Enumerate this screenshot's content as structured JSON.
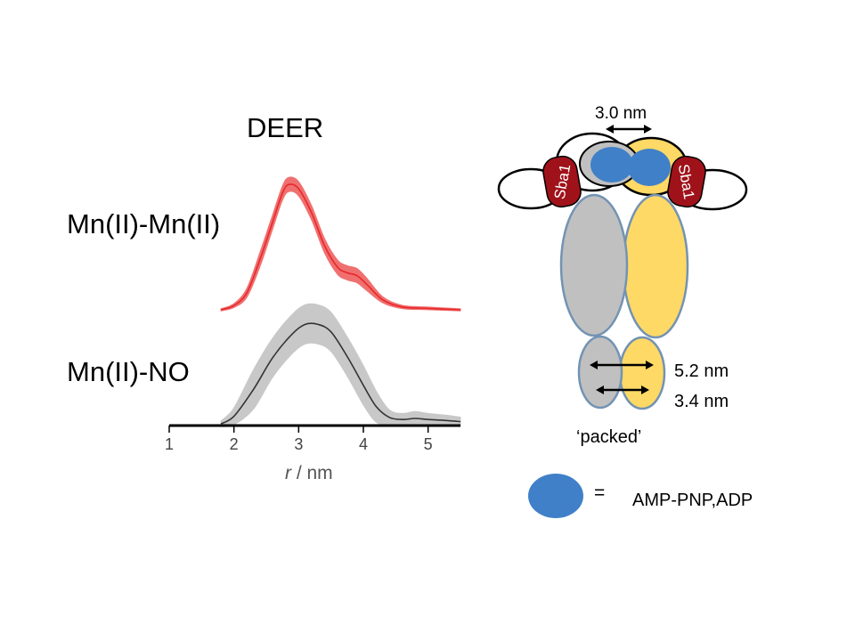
{
  "title": "DEER",
  "traces": [
    {
      "label": "Mn(II)-Mn(II)",
      "color": "#e8282a",
      "band_color": "#f07070",
      "points": [
        [
          1.8,
          0.0
        ],
        [
          2.0,
          0.03
        ],
        [
          2.2,
          0.12
        ],
        [
          2.4,
          0.35
        ],
        [
          2.6,
          0.62
        ],
        [
          2.75,
          0.82
        ],
        [
          2.85,
          0.88
        ],
        [
          3.0,
          0.85
        ],
        [
          3.2,
          0.68
        ],
        [
          3.4,
          0.45
        ],
        [
          3.6,
          0.3
        ],
        [
          3.75,
          0.26
        ],
        [
          3.9,
          0.24
        ],
        [
          4.05,
          0.18
        ],
        [
          4.3,
          0.07
        ],
        [
          4.6,
          0.02
        ],
        [
          5.0,
          0.01
        ],
        [
          5.5,
          0.0
        ]
      ]
    },
    {
      "label": "Mn(II)-NO",
      "color": "#333333",
      "band_color": "#c8c8c8",
      "points": [
        [
          1.8,
          0.0
        ],
        [
          2.0,
          0.07
        ],
        [
          2.3,
          0.32
        ],
        [
          2.6,
          0.62
        ],
        [
          2.9,
          0.84
        ],
        [
          3.1,
          0.93
        ],
        [
          3.3,
          0.93
        ],
        [
          3.5,
          0.86
        ],
        [
          3.75,
          0.63
        ],
        [
          4.0,
          0.36
        ],
        [
          4.2,
          0.16
        ],
        [
          4.4,
          0.06
        ],
        [
          4.6,
          0.04
        ],
        [
          4.8,
          0.05
        ],
        [
          5.0,
          0.04
        ],
        [
          5.3,
          0.03
        ],
        [
          5.5,
          0.02
        ]
      ]
    }
  ],
  "x_axis": {
    "label_italic": "r",
    "label_rest": " / nm",
    "ticks": [
      "1",
      "2",
      "3",
      "4",
      "5"
    ],
    "xlim": [
      1,
      5.5
    ]
  },
  "diagram": {
    "distance_top": "3.0 nm",
    "domain_label": "Sba1",
    "distance_1": "5.2 nm",
    "distance_2": "3.4 nm",
    "state": "‘packed’",
    "legend_eq": "=",
    "legend_text": "AMP-PNP,ADP"
  },
  "colors": {
    "grey_domain": "#c0c0c0",
    "yellow_domain": "#ffd966",
    "nucleotide": "#4080c8",
    "sba1": "#a0121a",
    "outline": "#7393b3"
  }
}
